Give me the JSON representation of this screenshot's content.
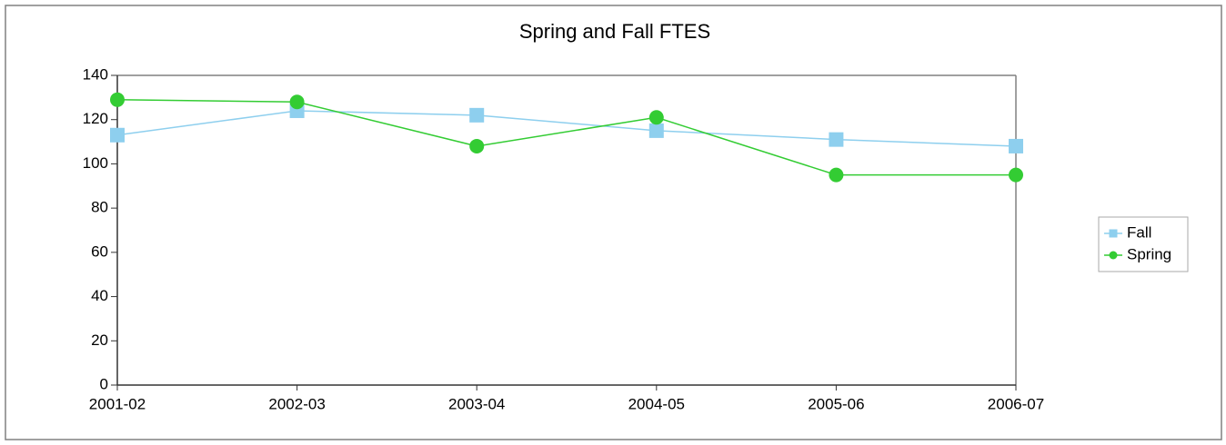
{
  "chart_data": {
    "type": "line",
    "title": "Spring and Fall FTES",
    "categories": [
      "2001-02",
      "2002-03",
      "2003-04",
      "2004-05",
      "2005-06",
      "2006-07"
    ],
    "series": [
      {
        "name": "Fall",
        "color": "#8ecfee",
        "marker": "square",
        "values": [
          113,
          124,
          122,
          115,
          111,
          108
        ]
      },
      {
        "name": "Spring",
        "color": "#33cc33",
        "marker": "circle",
        "values": [
          129,
          128,
          108,
          121,
          95,
          95
        ]
      }
    ],
    "ylim": [
      0,
      140
    ],
    "yticks": [
      0,
      20,
      40,
      60,
      80,
      100,
      120,
      140
    ],
    "legend": "right"
  }
}
